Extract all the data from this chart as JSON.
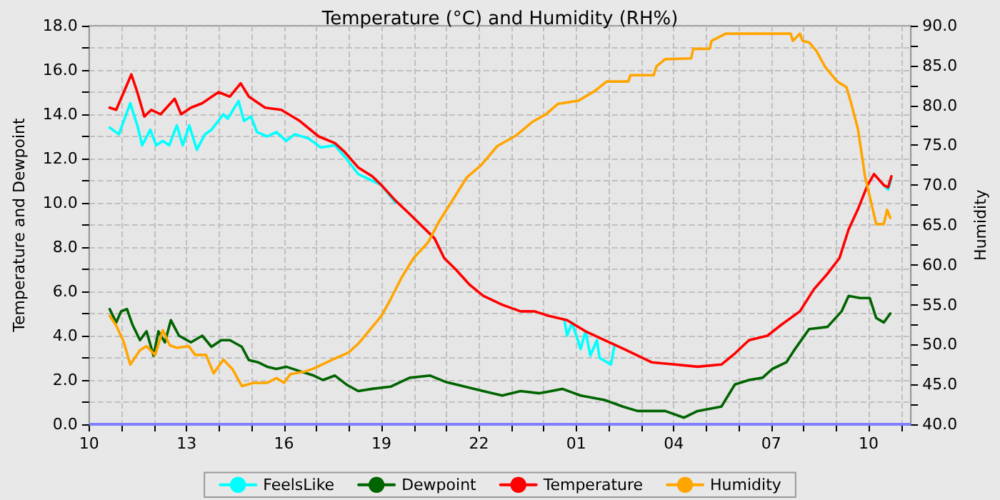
{
  "chart_data": {
    "type": "line",
    "title": "Temperature (°C) and Humidity (RH%)",
    "ylabel": "Temperature and Dewpoint",
    "y2label": "Humidity",
    "xlim": [
      "--01-01T10:00",
      "--01-02T11:18"
    ],
    "xticks": [
      {
        "value": "--01-01T10:00",
        "label": "10"
      },
      {
        "value": "--01-01T11:00",
        "label": null
      },
      {
        "value": "--01-01T12:00",
        "label": null
      },
      {
        "value": "--01-01T13:00",
        "label": "13"
      },
      {
        "value": "--01-01T14:00",
        "label": null
      },
      {
        "value": "--01-01T15:00",
        "label": null
      },
      {
        "value": "--01-01T16:00",
        "label": "16"
      },
      {
        "value": "--01-01T17:00",
        "label": null
      },
      {
        "value": "--01-01T18:00",
        "label": null
      },
      {
        "value": "--01-01T19:00",
        "label": "19"
      },
      {
        "value": "--01-01T20:00",
        "label": null
      },
      {
        "value": "--01-01T21:00",
        "label": null
      },
      {
        "value": "--01-01T22:00",
        "label": "22"
      },
      {
        "value": "--01-01T23:00",
        "label": null
      },
      {
        "value": "--01-02T00:00",
        "label": null
      },
      {
        "value": "--01-02T01:00",
        "label": "01"
      },
      {
        "value": "--01-02T02:00",
        "label": null
      },
      {
        "value": "--01-02T03:00",
        "label": null
      },
      {
        "value": "--01-02T04:00",
        "label": "04"
      },
      {
        "value": "--01-02T05:00",
        "label": null
      },
      {
        "value": "--01-02T06:00",
        "label": null
      },
      {
        "value": "--01-02T07:00",
        "label": "07"
      },
      {
        "value": "--01-02T08:00",
        "label": null
      },
      {
        "value": "--01-02T09:00",
        "label": null
      },
      {
        "value": "--01-02T10:00",
        "label": "10"
      },
      {
        "value": "--01-02T11:00",
        "label": null
      }
    ],
    "ylim": [
      0,
      18
    ],
    "yticks": [
      {
        "value": 0,
        "label": "0.0"
      },
      {
        "value": 1,
        "label": null
      },
      {
        "value": 2,
        "label": "2.0"
      },
      {
        "value": 3,
        "label": null
      },
      {
        "value": 4,
        "label": "4.0"
      },
      {
        "value": 5,
        "label": null
      },
      {
        "value": 6,
        "label": "6.0"
      },
      {
        "value": 7,
        "label": null
      },
      {
        "value": 8,
        "label": "8.0"
      },
      {
        "value": 9,
        "label": null
      },
      {
        "value": 10,
        "label": "10.0"
      },
      {
        "value": 11,
        "label": null
      },
      {
        "value": 12,
        "label": "12.0"
      },
      {
        "value": 13,
        "label": null
      },
      {
        "value": 14,
        "label": "14.0"
      },
      {
        "value": 15,
        "label": null
      },
      {
        "value": 16,
        "label": "16.0"
      },
      {
        "value": 17,
        "label": null
      },
      {
        "value": 18,
        "label": "18.0"
      }
    ],
    "y2lim": [
      40,
      90
    ],
    "y2ticks": [
      {
        "value": 40,
        "label": "40.0"
      },
      {
        "value": 42.5,
        "label": null
      },
      {
        "value": 45,
        "label": "45.0"
      },
      {
        "value": 47.5,
        "label": null
      },
      {
        "value": 50,
        "label": "50.0"
      },
      {
        "value": 52.5,
        "label": null
      },
      {
        "value": 55,
        "label": "55.0"
      },
      {
        "value": 57.5,
        "label": null
      },
      {
        "value": 60,
        "label": "60.0"
      },
      {
        "value": 62.5,
        "label": null
      },
      {
        "value": 65,
        "label": "65.0"
      },
      {
        "value": 67.5,
        "label": null
      },
      {
        "value": 70,
        "label": "70.0"
      },
      {
        "value": 72.5,
        "label": null
      },
      {
        "value": 75,
        "label": "75.0"
      },
      {
        "value": 77.5,
        "label": null
      },
      {
        "value": 80,
        "label": "80.0"
      },
      {
        "value": 82.5,
        "label": null
      },
      {
        "value": 85,
        "label": "85.0"
      },
      {
        "value": 87.5,
        "label": null
      },
      {
        "value": 90,
        "label": "90.0"
      }
    ],
    "grid": true,
    "legend": "bottom",
    "marker": "none",
    "line_style": "solid",
    "ref_lines": [
      {
        "axis": "y",
        "value": 0,
        "color": "#8080ff"
      }
    ],
    "series": [
      {
        "name": "FeelsLike",
        "color": "#00ffff",
        "x": [
          "--01-01T10:38",
          "--01-01T10:55",
          "--01-01T11:16",
          "--01-01T11:29",
          "--01-01T11:38",
          "--01-01T11:53",
          "--01-01T12:04",
          "--01-01T12:16",
          "--01-01T12:28",
          "--01-01T12:42",
          "--01-01T12:53",
          "--01-01T13:05",
          "--01-01T13:19",
          "--01-01T13:34",
          "--01-01T13:46",
          "--01-01T14:08",
          "--01-01T14:16",
          "--01-01T14:36",
          "--01-01T14:46",
          "--01-01T14:59",
          "--01-01T15:10",
          "--01-01T15:29",
          "--01-01T15:46",
          "--01-01T16:04",
          "--01-01T16:20",
          "--01-01T16:46",
          "--01-01T17:08",
          "--01-01T17:34",
          "--01-01T17:55",
          "--01-01T18:17",
          "--01-01T18:43",
          "--01-01T19:00",
          "--01-01T19:26",
          "--01-01T19:30",
          "--01-02T00:38",
          "--01-02T00:43",
          "--01-02T00:52",
          "--01-02T01:08",
          "--01-02T01:17",
          "--01-02T01:26",
          "--01-02T01:38",
          "--01-02T01:43",
          "--01-02T02:04",
          "--01-02T02:10",
          "--01-02T02:18",
          "--01-02T09:58",
          "--01-02T10:10",
          "--01-02T10:28",
          "--01-02T10:36",
          "--01-02T10:42"
        ],
        "values": [
          13.4,
          13.1,
          14.5,
          13.5,
          12.6,
          13.3,
          12.6,
          12.8,
          12.6,
          13.5,
          12.6,
          13.5,
          12.4,
          13.1,
          13.3,
          14.0,
          13.8,
          14.6,
          13.7,
          13.9,
          13.2,
          13.0,
          13.2,
          12.8,
          13.1,
          12.9,
          12.5,
          12.6,
          12.0,
          11.3,
          11.0,
          10.8,
          10.0,
          null,
          4.7,
          4.0,
          4.6,
          3.4,
          4.2,
          3.1,
          3.8,
          3.0,
          2.7,
          3.5,
          null,
          null,
          null,
          10.8,
          10.6,
          11.1
        ]
      },
      {
        "name": "Dewpoint",
        "color": "#006400",
        "x": [
          "--01-01T10:38",
          "--01-01T10:50",
          "--01-01T10:59",
          "--01-01T11:10",
          "--01-01T11:20",
          "--01-01T11:34",
          "--01-01T11:46",
          "--01-01T11:59",
          "--01-01T12:08",
          "--01-01T12:20",
          "--01-01T12:31",
          "--01-01T12:46",
          "--01-01T13:08",
          "--01-01T13:29",
          "--01-01T13:46",
          "--01-01T14:04",
          "--01-01T14:20",
          "--01-01T14:42",
          "--01-01T14:55",
          "--01-01T15:12",
          "--01-01T15:29",
          "--01-01T15:46",
          "--01-01T16:04",
          "--01-01T16:29",
          "--01-01T16:55",
          "--01-01T17:12",
          "--01-01T17:34",
          "--01-01T17:55",
          "--01-01T18:17",
          "--01-01T18:43",
          "--01-01T19:17",
          "--01-01T19:52",
          "--01-01T20:30",
          "--01-01T21:00",
          "--01-01T21:34",
          "--01-01T22:08",
          "--01-01T22:43",
          "--01-01T23:17",
          "--01-01T23:52",
          "--01-02T00:34",
          "--01-02T01:08",
          "--01-02T01:52",
          "--01-02T02:26",
          "--01-02T02:53",
          "--01-02T03:44",
          "--01-02T04:19",
          "--01-02T04:44",
          "--01-02T05:28",
          "--01-02T05:53",
          "--01-02T06:19",
          "--01-02T06:44",
          "--01-02T07:02",
          "--01-02T07:28",
          "--01-02T07:44",
          "--01-02T08:10",
          "--01-02T08:44",
          "--01-02T09:10",
          "--01-02T09:23",
          "--01-02T09:44",
          "--01-02T10:02",
          "--01-02T10:14",
          "--01-02T10:28",
          "--01-02T10:40"
        ],
        "values": [
          5.2,
          4.6,
          5.1,
          5.2,
          4.5,
          3.8,
          4.2,
          3.1,
          4.2,
          3.7,
          4.7,
          4.0,
          3.7,
          4.0,
          3.5,
          3.8,
          3.8,
          3.5,
          2.9,
          2.8,
          2.6,
          2.5,
          2.6,
          2.4,
          2.2,
          2.0,
          2.2,
          1.8,
          1.5,
          1.6,
          1.7,
          2.1,
          2.2,
          1.9,
          1.7,
          1.5,
          1.3,
          1.5,
          1.4,
          1.6,
          1.3,
          1.1,
          0.8,
          0.6,
          0.6,
          0.3,
          0.6,
          0.8,
          1.8,
          2.0,
          2.1,
          2.5,
          2.8,
          3.4,
          4.3,
          4.4,
          5.1,
          5.8,
          5.7,
          5.7,
          4.8,
          4.6,
          5.0
        ]
      },
      {
        "name": "Temperature",
        "color": "#ff0000",
        "x": [
          "--01-01T10:38",
          "--01-01T10:50",
          "--01-01T11:04",
          "--01-01T11:18",
          "--01-01T11:29",
          "--01-01T11:42",
          "--01-01T11:55",
          "--01-01T12:12",
          "--01-01T12:38",
          "--01-01T12:50",
          "--01-01T13:08",
          "--01-01T13:29",
          "--01-01T13:59",
          "--01-01T14:20",
          "--01-01T14:40",
          "--01-01T14:55",
          "--01-01T15:25",
          "--01-01T15:55",
          "--01-01T16:29",
          "--01-01T17:04",
          "--01-01T17:34",
          "--01-01T17:52",
          "--01-01T18:17",
          "--01-01T18:43",
          "--01-01T19:00",
          "--01-01T19:26",
          "--01-01T19:52",
          "--01-01T20:17",
          "--01-01T20:38",
          "--01-01T20:56",
          "--01-01T21:17",
          "--01-01T21:43",
          "--01-01T22:08",
          "--01-01T22:43",
          "--01-01T23:17",
          "--01-01T23:43",
          "--01-02T00:08",
          "--01-02T00:43",
          "--01-02T01:17",
          "--01-02T01:52",
          "--01-02T02:28",
          "--01-02T03:19",
          "--01-02T04:02",
          "--01-02T04:44",
          "--01-02T05:28",
          "--01-02T05:53",
          "--01-02T06:19",
          "--01-02T06:53",
          "--01-02T07:19",
          "--01-02T07:53",
          "--01-02T08:19",
          "--01-02T08:44",
          "--01-02T09:06",
          "--01-02T09:23",
          "--01-02T09:40",
          "--01-02T09:58",
          "--01-02T10:10",
          "--01-02T10:28",
          "--01-02T10:36",
          "--01-02T10:42"
        ],
        "values": [
          14.3,
          14.2,
          15.0,
          15.8,
          15.0,
          13.9,
          14.2,
          14.0,
          14.7,
          14.0,
          14.3,
          14.5,
          15.0,
          14.8,
          15.4,
          14.8,
          14.3,
          14.2,
          13.7,
          13.0,
          12.7,
          12.3,
          11.6,
          11.2,
          10.8,
          10.1,
          9.5,
          8.9,
          8.4,
          7.5,
          7.0,
          6.3,
          5.8,
          5.4,
          5.1,
          5.1,
          4.9,
          4.7,
          4.2,
          3.8,
          3.4,
          2.8,
          2.7,
          2.6,
          2.7,
          3.2,
          3.8,
          4.0,
          4.5,
          5.1,
          6.1,
          6.8,
          7.5,
          8.8,
          9.7,
          10.8,
          11.3,
          10.8,
          10.7,
          11.2
        ]
      },
      {
        "name": "Humidity",
        "color": "#ffa500",
        "axis": "y2",
        "x": [
          "--01-01T10:38",
          "--01-01T10:50",
          "--01-01T11:04",
          "--01-01T11:16",
          "--01-01T11:25",
          "--01-01T11:34",
          "--01-01T11:46",
          "--01-01T12:02",
          "--01-01T12:16",
          "--01-01T12:29",
          "--01-01T12:42",
          "--01-01T13:04",
          "--01-01T13:16",
          "--01-01T13:36",
          "--01-01T13:50",
          "--01-01T14:08",
          "--01-01T14:25",
          "--01-01T14:42",
          "--01-01T15:04",
          "--01-01T15:29",
          "--01-01T15:46",
          "--01-01T16:00",
          "--01-01T16:12",
          "--01-01T16:38",
          "--01-01T16:55",
          "--01-01T17:29",
          "--01-01T17:59",
          "--01-01T18:17",
          "--01-01T18:38",
          "--01-01T19:00",
          "--01-01T19:17",
          "--01-01T19:38",
          "--01-01T20:00",
          "--01-01T20:26",
          "--01-01T20:47",
          "--01-01T21:13",
          "--01-01T21:38",
          "--01-01T22:04",
          "--01-01T22:34",
          "--01-01T23:08",
          "--01-01T23:38",
          "--01-02T00:04",
          "--01-02T00:26",
          "--01-02T01:04",
          "--01-02T01:34",
          "--01-02T01:56",
          "--01-02T02:36",
          "--01-02T02:40",
          "--01-02T03:23",
          "--01-02T03:28",
          "--01-02T03:44",
          "--01-02T04:32",
          "--01-02T04:36",
          "--01-02T05:06",
          "--01-02T05:10",
          "--01-02T05:36",
          "--01-02T07:36",
          "--01-02T07:40",
          "--01-02T07:53",
          "--01-02T07:58",
          "--01-02T08:10",
          "--01-02T08:23",
          "--01-02T08:40",
          "--01-02T09:02",
          "--01-02T09:19",
          "--01-02T09:28",
          "--01-02T09:40",
          "--01-02T09:49",
          "--01-02T09:53",
          "--01-02T10:02",
          "--01-02T10:14",
          "--01-02T10:28",
          "--01-02T10:34",
          "--01-02T10:40"
        ],
        "values": [
          53.6,
          52.4,
          50.3,
          47.5,
          48.4,
          49.3,
          49.8,
          48.7,
          51.8,
          49.9,
          49.6,
          49.8,
          48.7,
          48.7,
          46.4,
          48.1,
          46.9,
          44.8,
          45.2,
          45.2,
          45.8,
          45.2,
          46.3,
          46.6,
          47.0,
          48.1,
          49.0,
          50.1,
          51.8,
          53.6,
          55.7,
          58.5,
          60.9,
          62.8,
          65.5,
          68.3,
          71.0,
          72.5,
          74.9,
          76.2,
          77.9,
          78.9,
          80.2,
          80.6,
          81.8,
          83.0,
          83.0,
          83.8,
          83.8,
          84.9,
          85.8,
          85.9,
          87.1,
          87.1,
          88.1,
          89.0,
          89.0,
          88.1,
          89.0,
          88.1,
          87.9,
          86.9,
          84.8,
          83.0,
          82.3,
          80.2,
          77.1,
          73.1,
          71.2,
          68.6,
          65.1,
          65.1,
          66.9,
          65.9
        ]
      }
    ]
  }
}
